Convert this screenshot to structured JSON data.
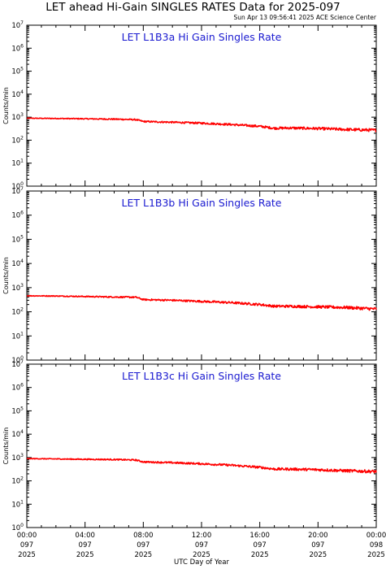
{
  "title": "LET ahead Hi-Gain SINGLES RATES Data for 2025-097",
  "timestamp": "Sun Apr 13 09:56:41 2025 ACE Science Center",
  "colors": {
    "series": "#ff0000",
    "panel_title": "#1a1ad0",
    "axis": "#000000"
  },
  "chart_data": [
    {
      "type": "line",
      "title": "LET L1B3a Hi Gain Singles Rate",
      "ylabel": "Counts/min",
      "yscale": "log",
      "ylim": [
        1,
        10000000
      ],
      "y_ticks": [
        "10",
        "10",
        "10",
        "10",
        "10",
        "10",
        "10",
        "10"
      ],
      "y_tick_exponents": [
        "0",
        "1",
        "2",
        "3",
        "4",
        "5",
        "6",
        "7"
      ],
      "xlim": [
        0,
        24
      ],
      "x": [
        0,
        2,
        4,
        6,
        7.5,
        8,
        10,
        12,
        14,
        16,
        17,
        18,
        20,
        22,
        24
      ],
      "series": [
        {
          "values": [
            900,
            880,
            850,
            820,
            780,
            650,
            600,
            550,
            480,
            400,
            330,
            340,
            320,
            290,
            270
          ]
        }
      ]
    },
    {
      "type": "line",
      "title": "LET L1B3b Hi Gain Singles Rate",
      "ylabel": "Counts/min",
      "yscale": "log",
      "ylim": [
        1,
        10000000
      ],
      "y_ticks": [
        "10",
        "10",
        "10",
        "10",
        "10",
        "10",
        "10",
        "10"
      ],
      "y_tick_exponents": [
        "0",
        "1",
        "2",
        "3",
        "4",
        "5",
        "6",
        "7"
      ],
      "xlim": [
        0,
        24
      ],
      "x": [
        0,
        2,
        4,
        6,
        7.5,
        8,
        10,
        12,
        14,
        16,
        17,
        18,
        20,
        22,
        24
      ],
      "series": [
        {
          "values": [
            460,
            450,
            430,
            410,
            400,
            320,
            300,
            270,
            240,
            200,
            170,
            170,
            160,
            150,
            130
          ]
        }
      ]
    },
    {
      "type": "line",
      "title": "LET L1B3c Hi Gain Singles Rate",
      "ylabel": "Counts/min",
      "yscale": "log",
      "ylim": [
        1,
        10000000
      ],
      "y_ticks": [
        "10",
        "10",
        "10",
        "10",
        "10",
        "10",
        "10",
        "10"
      ],
      "y_tick_exponents": [
        "0",
        "1",
        "2",
        "3",
        "4",
        "5",
        "6",
        "7"
      ],
      "xlim": [
        0,
        24
      ],
      "x": [
        0,
        2,
        4,
        6,
        7.5,
        8,
        10,
        12,
        14,
        16,
        17,
        18,
        20,
        22,
        24
      ],
      "series": [
        {
          "values": [
            900,
            870,
            840,
            820,
            780,
            650,
            600,
            540,
            470,
            380,
            320,
            320,
            300,
            270,
            250
          ]
        }
      ]
    }
  ],
  "x_axis": {
    "label": "UTC Day of Year",
    "ticks": [
      {
        "time": "00:00",
        "day": "097",
        "year": "2025"
      },
      {
        "time": "04:00",
        "day": "097",
        "year": "2025"
      },
      {
        "time": "08:00",
        "day": "097",
        "year": "2025"
      },
      {
        "time": "12:00",
        "day": "097",
        "year": "2025"
      },
      {
        "time": "16:00",
        "day": "097",
        "year": "2025"
      },
      {
        "time": "20:00",
        "day": "097",
        "year": "2025"
      },
      {
        "time": "00:00",
        "day": "098",
        "year": "2025"
      }
    ]
  }
}
